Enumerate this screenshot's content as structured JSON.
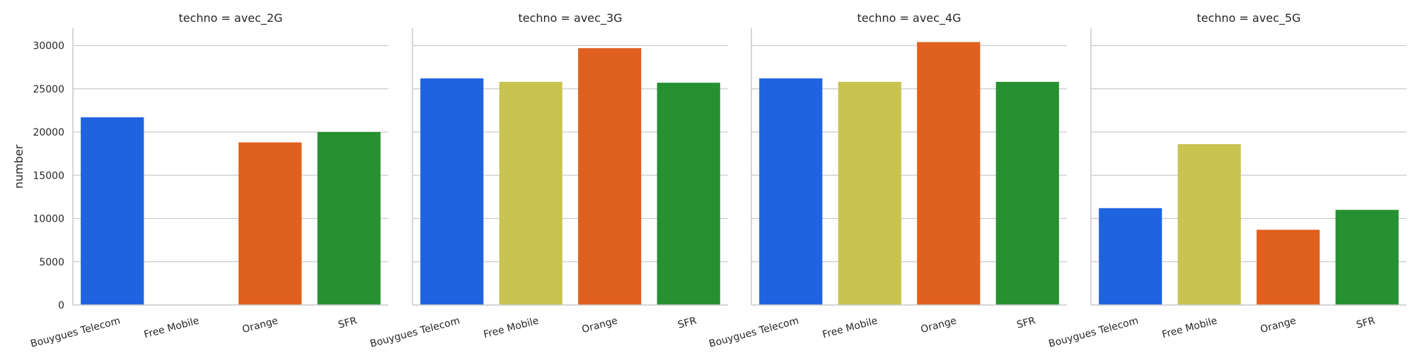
{
  "chart_data": {
    "type": "bar",
    "ylabel": "number",
    "ylim": [
      0,
      32000
    ],
    "yticks": [
      0,
      5000,
      10000,
      15000,
      20000,
      25000,
      30000
    ],
    "grid": true,
    "categories": [
      "Bouygues Telecom",
      "Free Mobile",
      "Orange",
      "SFR"
    ],
    "category_colors": [
      "#2063e0",
      "#c9c452",
      "#e0601f",
      "#259131"
    ],
    "panels": [
      {
        "title": "techno = avec_2G",
        "values": [
          21700,
          0,
          18800,
          20000
        ]
      },
      {
        "title": "techno = avec_3G",
        "values": [
          26200,
          25800,
          29700,
          25700
        ]
      },
      {
        "title": "techno = avec_4G",
        "values": [
          26200,
          25800,
          30400,
          25800
        ]
      },
      {
        "title": "techno = avec_5G",
        "values": [
          11200,
          18600,
          8700,
          11000
        ]
      }
    ]
  }
}
